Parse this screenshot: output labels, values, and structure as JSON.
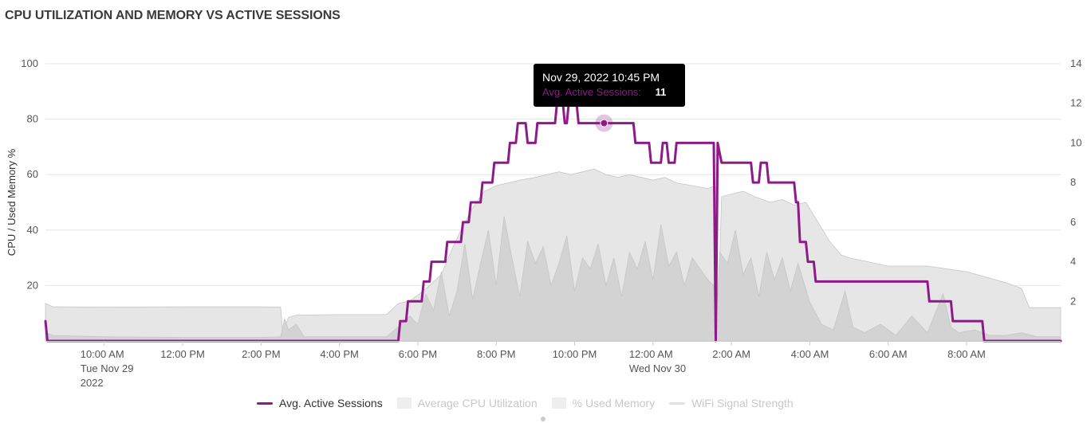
{
  "title": "CPU UTILIZATION AND MEMORY VS ACTIVE SESSIONS",
  "tooltip": {
    "date": "Nov 29, 2022 10:45 PM",
    "label": "Avg. Active Sessions:",
    "value": "11"
  },
  "legend": [
    {
      "label": "Avg. Active Sessions",
      "color": "#8e1a8a",
      "kind": "line",
      "active": true
    },
    {
      "label": "Average CPU Utilization",
      "color": "#eeeeee",
      "kind": "box",
      "active": false
    },
    {
      "label": "% Used Memory",
      "color": "#eeeeee",
      "kind": "box",
      "active": false
    },
    {
      "label": "WiFi Signal Strength",
      "color": "#e0e0e0",
      "kind": "line",
      "active": false
    }
  ],
  "chart_data": {
    "type": "area",
    "ylabel": "CPU / Used Memory %",
    "y_ticks": [
      "20",
      "40",
      "60",
      "80",
      "100"
    ],
    "y_range": [
      0,
      100
    ],
    "y2_ticks": [
      "2",
      "4",
      "6",
      "8",
      "10",
      "12",
      "14"
    ],
    "y2_range": [
      0,
      14
    ],
    "x_range_hours": [
      8.5,
      34.4
    ],
    "x_ticks": [
      {
        "hour": 10,
        "label": "10:00 AM",
        "sub": [
          "Tue Nov 29",
          "2022"
        ]
      },
      {
        "hour": 12,
        "label": "12:00 PM",
        "sub": []
      },
      {
        "hour": 14,
        "label": "2:00 PM",
        "sub": []
      },
      {
        "hour": 16,
        "label": "4:00 PM",
        "sub": []
      },
      {
        "hour": 18,
        "label": "6:00 PM",
        "sub": []
      },
      {
        "hour": 20,
        "label": "8:00 PM",
        "sub": []
      },
      {
        "hour": 22,
        "label": "10:00 PM",
        "sub": []
      },
      {
        "hour": 24,
        "label": "12:00 AM",
        "sub": [
          "Wed Nov 30"
        ]
      },
      {
        "hour": 26,
        "label": "2:00 AM",
        "sub": []
      },
      {
        "hour": 28,
        "label": "4:00 AM",
        "sub": []
      },
      {
        "hour": 30,
        "label": "6:00 AM",
        "sub": []
      },
      {
        "hour": 32,
        "label": "8:00 AM",
        "sub": []
      }
    ],
    "highlight": {
      "hour": 22.75,
      "value": 11
    },
    "series": [
      {
        "name": "% Used Memory",
        "axis": "left",
        "color": "#e6e6e6",
        "points": [
          [
            8.5,
            13.5
          ],
          [
            8.7,
            12.3
          ],
          [
            10,
            12.2
          ],
          [
            12,
            12.3
          ],
          [
            14,
            12.3
          ],
          [
            14.5,
            12.2
          ],
          [
            14.55,
            3
          ],
          [
            14.7,
            8.5
          ],
          [
            14.9,
            9.3
          ],
          [
            16,
            9.5
          ],
          [
            17.2,
            9.5
          ],
          [
            17.5,
            13.5
          ],
          [
            17.8,
            14.5
          ],
          [
            18.0,
            16.5
          ],
          [
            18.3,
            20
          ],
          [
            18.6,
            24
          ],
          [
            18.9,
            34
          ],
          [
            19.1,
            40
          ],
          [
            19.4,
            48
          ],
          [
            19.7,
            54
          ],
          [
            20.0,
            56
          ],
          [
            20.3,
            57
          ],
          [
            20.6,
            58
          ],
          [
            21.0,
            59
          ],
          [
            21.3,
            60
          ],
          [
            21.6,
            61
          ],
          [
            21.9,
            60
          ],
          [
            22.2,
            61
          ],
          [
            22.5,
            62
          ],
          [
            22.8,
            60
          ],
          [
            23.1,
            59
          ],
          [
            23.4,
            60
          ],
          [
            23.7,
            59
          ],
          [
            24.0,
            58
          ],
          [
            24.3,
            59
          ],
          [
            24.6,
            57
          ],
          [
            25.0,
            56
          ],
          [
            25.4,
            55
          ],
          [
            25.6,
            56
          ],
          [
            25.65,
            3
          ],
          [
            25.75,
            52
          ],
          [
            26.0,
            53
          ],
          [
            26.3,
            54
          ],
          [
            26.6,
            52
          ],
          [
            27.0,
            50
          ],
          [
            27.3,
            51
          ],
          [
            27.6,
            49
          ],
          [
            27.9,
            50
          ],
          [
            28.2,
            43
          ],
          [
            28.5,
            36
          ],
          [
            28.8,
            31
          ],
          [
            29.0,
            30
          ],
          [
            30.0,
            27
          ],
          [
            31.0,
            27
          ],
          [
            32.0,
            25
          ],
          [
            33.0,
            21
          ],
          [
            33.4,
            19
          ],
          [
            33.6,
            12
          ],
          [
            34.4,
            12
          ]
        ]
      },
      {
        "name": "Average CPU Utilization",
        "axis": "left",
        "color": "#d3d3d3",
        "points": [
          [
            8.5,
            3
          ],
          [
            8.7,
            2
          ],
          [
            10,
            1.5
          ],
          [
            12,
            1.3
          ],
          [
            14,
            1.3
          ],
          [
            14.5,
            1.5
          ],
          [
            14.6,
            8
          ],
          [
            14.7,
            4
          ],
          [
            14.9,
            6
          ],
          [
            15.1,
            1.5
          ],
          [
            16,
            1.5
          ],
          [
            17.2,
            1.5
          ],
          [
            17.5,
            5
          ],
          [
            17.8,
            9
          ],
          [
            18.0,
            6
          ],
          [
            18.2,
            17
          ],
          [
            18.4,
            11
          ],
          [
            18.6,
            25
          ],
          [
            18.8,
            9
          ],
          [
            19.0,
            18
          ],
          [
            19.2,
            35
          ],
          [
            19.4,
            15
          ],
          [
            19.6,
            28
          ],
          [
            19.8,
            40
          ],
          [
            20.0,
            20
          ],
          [
            20.2,
            45
          ],
          [
            20.4,
            30
          ],
          [
            20.6,
            16
          ],
          [
            20.8,
            36
          ],
          [
            21.0,
            28
          ],
          [
            21.2,
            34
          ],
          [
            21.4,
            20
          ],
          [
            21.6,
            28
          ],
          [
            21.8,
            38
          ],
          [
            22.0,
            18
          ],
          [
            22.2,
            30
          ],
          [
            22.4,
            26
          ],
          [
            22.6,
            35
          ],
          [
            22.8,
            20
          ],
          [
            23.0,
            30
          ],
          [
            23.2,
            16
          ],
          [
            23.4,
            32
          ],
          [
            23.6,
            26
          ],
          [
            23.8,
            36
          ],
          [
            24.0,
            22
          ],
          [
            24.2,
            42
          ],
          [
            24.4,
            27
          ],
          [
            24.6,
            32
          ],
          [
            24.8,
            20
          ],
          [
            25.0,
            30
          ],
          [
            25.2,
            26
          ],
          [
            25.4,
            22
          ],
          [
            25.55,
            20
          ],
          [
            25.6,
            3
          ],
          [
            25.7,
            32
          ],
          [
            25.9,
            28
          ],
          [
            26.1,
            40
          ],
          [
            26.3,
            24
          ],
          [
            26.5,
            30
          ],
          [
            26.7,
            16
          ],
          [
            26.9,
            32
          ],
          [
            27.1,
            22
          ],
          [
            27.3,
            30
          ],
          [
            27.5,
            18
          ],
          [
            27.7,
            28
          ],
          [
            28.0,
            14
          ],
          [
            28.3,
            6
          ],
          [
            28.6,
            4
          ],
          [
            28.9,
            18
          ],
          [
            29.1,
            5
          ],
          [
            29.4,
            3
          ],
          [
            29.8,
            6
          ],
          [
            30.2,
            2
          ],
          [
            30.6,
            9
          ],
          [
            31.0,
            3
          ],
          [
            31.4,
            17
          ],
          [
            31.6,
            5
          ],
          [
            31.8,
            3
          ],
          [
            32.2,
            4
          ],
          [
            32.6,
            2
          ],
          [
            33.0,
            2
          ],
          [
            33.4,
            3
          ],
          [
            33.8,
            1.5
          ],
          [
            34.4,
            1.5
          ]
        ]
      },
      {
        "name": "Avg. Active Sessions",
        "axis": "right",
        "color": "#8e1a8a",
        "points": [
          [
            8.5,
            1
          ],
          [
            8.55,
            0
          ],
          [
            17.5,
            0
          ],
          [
            17.55,
            1
          ],
          [
            17.7,
            1
          ],
          [
            17.75,
            2
          ],
          [
            18.1,
            2
          ],
          [
            18.15,
            3
          ],
          [
            18.3,
            3
          ],
          [
            18.35,
            4
          ],
          [
            18.7,
            4
          ],
          [
            18.75,
            5
          ],
          [
            19.1,
            5
          ],
          [
            19.15,
            6
          ],
          [
            19.3,
            6
          ],
          [
            19.35,
            7
          ],
          [
            19.6,
            7
          ],
          [
            19.65,
            8
          ],
          [
            19.9,
            8
          ],
          [
            19.95,
            9
          ],
          [
            20.3,
            9
          ],
          [
            20.35,
            10
          ],
          [
            20.5,
            10
          ],
          [
            20.55,
            11
          ],
          [
            20.75,
            11
          ],
          [
            20.8,
            10
          ],
          [
            21.0,
            10
          ],
          [
            21.05,
            11
          ],
          [
            21.5,
            11
          ],
          [
            21.55,
            12
          ],
          [
            21.7,
            12
          ],
          [
            21.75,
            11
          ],
          [
            21.8,
            11
          ],
          [
            21.85,
            12
          ],
          [
            22.05,
            12
          ],
          [
            22.1,
            11
          ],
          [
            23.5,
            11
          ],
          [
            23.55,
            10
          ],
          [
            23.9,
            10
          ],
          [
            23.95,
            9
          ],
          [
            24.2,
            9
          ],
          [
            24.25,
            10
          ],
          [
            24.35,
            10
          ],
          [
            24.4,
            9
          ],
          [
            24.55,
            9
          ],
          [
            24.6,
            10
          ],
          [
            25.55,
            10
          ],
          [
            25.6,
            0
          ],
          [
            25.65,
            10
          ],
          [
            25.75,
            9
          ],
          [
            26.5,
            9
          ],
          [
            26.55,
            8
          ],
          [
            26.7,
            8
          ],
          [
            26.75,
            9
          ],
          [
            26.9,
            9
          ],
          [
            26.95,
            8
          ],
          [
            27.6,
            8
          ],
          [
            27.65,
            7
          ],
          [
            27.7,
            7
          ],
          [
            27.75,
            5
          ],
          [
            27.9,
            5
          ],
          [
            27.95,
            4
          ],
          [
            28.1,
            4
          ],
          [
            28.15,
            3
          ],
          [
            29.0,
            3
          ],
          [
            29.05,
            3
          ],
          [
            31.0,
            3
          ],
          [
            31.05,
            2
          ],
          [
            31.6,
            2
          ],
          [
            31.65,
            1
          ],
          [
            32.4,
            1
          ],
          [
            32.45,
            0
          ],
          [
            34.4,
            0
          ]
        ]
      }
    ]
  }
}
